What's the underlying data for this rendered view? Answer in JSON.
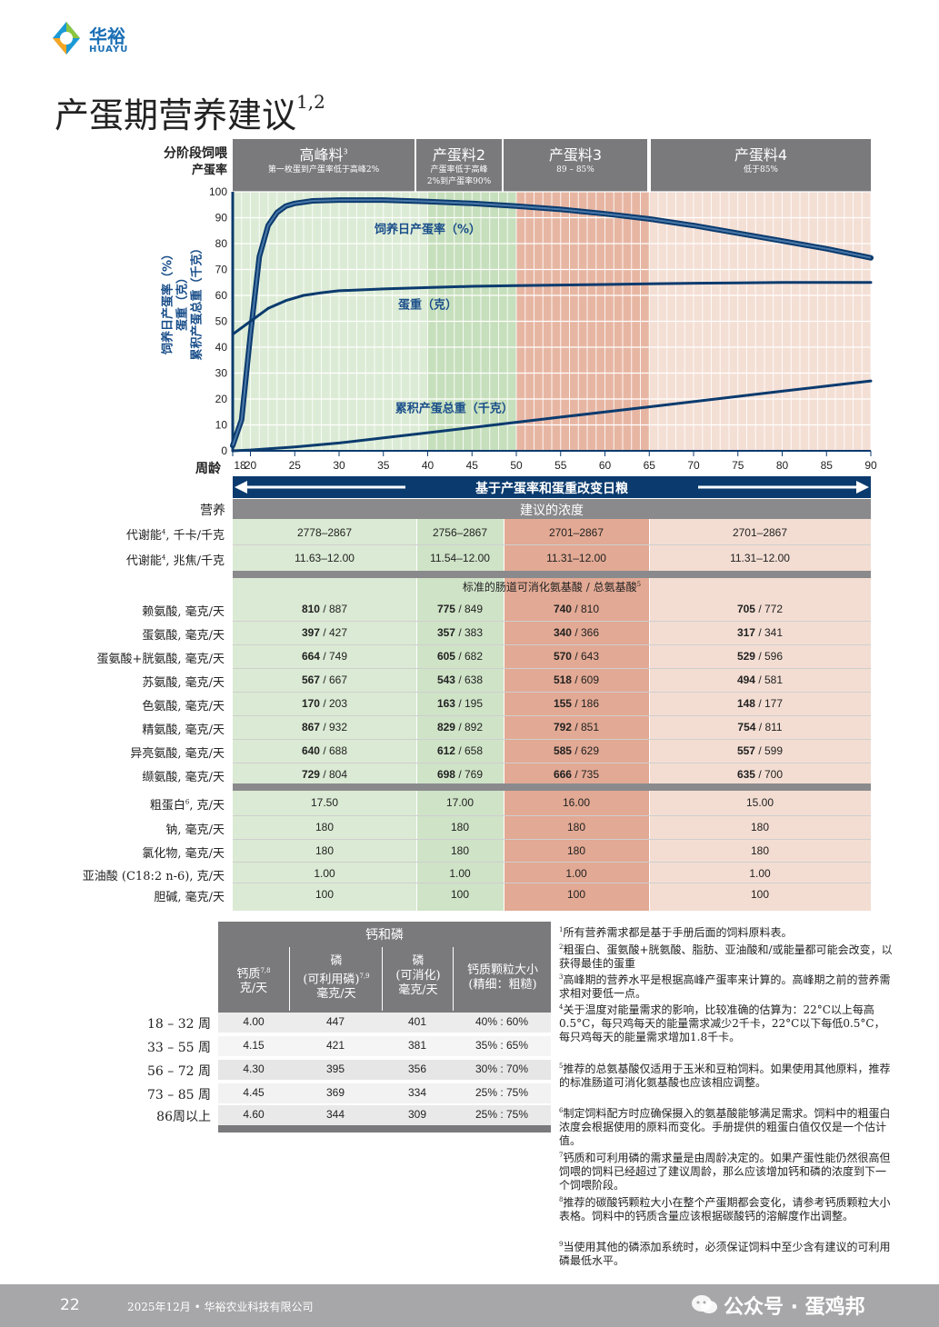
{
  "logo": {
    "name_cn": "华裕",
    "name_en": "HUAYU"
  },
  "title": {
    "text": "产蛋期营养建议",
    "sup": "1,2"
  },
  "chart_header": {
    "left_label_1": "分阶段饲喂",
    "left_label_2": "产蛋率",
    "phases": [
      {
        "name": "高峰料",
        "sup": "3",
        "desc": "第一枚蛋到产蛋率低于高峰2%"
      },
      {
        "name": "产蛋料2",
        "desc_1": "产蛋率低于高峰",
        "desc_2": "2%到产蛋率90%"
      },
      {
        "name": "产蛋料3",
        "desc": "89 – 85%"
      },
      {
        "name": "产蛋料4",
        "desc": "低于85%"
      }
    ]
  },
  "chart_data": {
    "type": "line",
    "x_label": "周龄",
    "y_axis_labels": [
      "饲养日产蛋率（%）",
      "蛋重（克）",
      "累积产蛋总重（千克）"
    ],
    "x_ticks": [
      18,
      20,
      25,
      30,
      35,
      40,
      45,
      50,
      55,
      60,
      65,
      70,
      75,
      80,
      85,
      90
    ],
    "y_ticks": [
      0,
      10,
      20,
      30,
      40,
      50,
      60,
      70,
      80,
      90,
      100
    ],
    "xlim": [
      18,
      90
    ],
    "ylim": [
      0,
      100
    ],
    "series": [
      {
        "name": "饲养日产蛋率（%）",
        "x": [
          18,
          19,
          20,
          21,
          22,
          23,
          24,
          25,
          27,
          30,
          35,
          40,
          45,
          50,
          55,
          60,
          65,
          70,
          75,
          80,
          85,
          90
        ],
        "y": [
          2,
          12,
          45,
          75,
          87,
          92,
          94.5,
          95.5,
          96.5,
          96.8,
          96.8,
          96.2,
          95.5,
          94.5,
          93.2,
          91.5,
          89.5,
          87,
          84,
          81,
          78,
          74.5
        ]
      },
      {
        "name": "蛋重（克）",
        "x": [
          18,
          20,
          22,
          24,
          26,
          28,
          30,
          35,
          40,
          45,
          50,
          55,
          60,
          65,
          70,
          75,
          80,
          85,
          90
        ],
        "y": [
          45,
          50,
          55,
          58,
          60,
          61,
          61.8,
          62.5,
          63,
          63.5,
          63.8,
          64,
          64.2,
          64.5,
          64.7,
          64.8,
          65,
          65,
          65
        ]
      },
      {
        "name": "累积产蛋总重（千克）",
        "x": [
          18,
          20,
          25,
          30,
          35,
          40,
          45,
          50,
          55,
          60,
          65,
          70,
          75,
          80,
          85,
          90
        ],
        "y": [
          0,
          0.3,
          1.5,
          3,
          5,
          7,
          9,
          11,
          13,
          15,
          17,
          19,
          21,
          23,
          25,
          27
        ]
      }
    ],
    "arrow_label": "基于产蛋率和蛋重改变日粮"
  },
  "table": {
    "nutrient_header": "营养",
    "conc_header": "建议的浓度",
    "energy_rows": [
      {
        "label": "代谢能",
        "sup": "4",
        "unit": ", 千卡/千克",
        "values": [
          "2778–2867",
          "2756–2867",
          "2701–2867",
          "2701–2867"
        ]
      },
      {
        "label": "代谢能",
        "sup": "4",
        "unit": ", 兆焦/千克",
        "values": [
          "11.63–12.00",
          "11.54–12.00",
          "11.31–12.00",
          "11.31–12.00"
        ]
      }
    ],
    "aa_header": "标准的肠道可消化氨基酸 / 总氨基酸",
    "aa_header_sup": "5",
    "aa_rows": [
      {
        "label": "赖氨酸, 毫克/天",
        "values": [
          [
            "810",
            "887"
          ],
          [
            "775",
            "849"
          ],
          [
            "740",
            "810"
          ],
          [
            "705",
            "772"
          ]
        ]
      },
      {
        "label": "蛋氨酸, 毫克/天",
        "values": [
          [
            "397",
            "427"
          ],
          [
            "357",
            "383"
          ],
          [
            "340",
            "366"
          ],
          [
            "317",
            "341"
          ]
        ]
      },
      {
        "label": "蛋氨酸+胱氨酸, 毫克/天",
        "values": [
          [
            "664",
            "749"
          ],
          [
            "605",
            "682"
          ],
          [
            "570",
            "643"
          ],
          [
            "529",
            "596"
          ]
        ]
      },
      {
        "label": "苏氨酸, 毫克/天",
        "values": [
          [
            "567",
            "667"
          ],
          [
            "543",
            "638"
          ],
          [
            "518",
            "609"
          ],
          [
            "494",
            "581"
          ]
        ]
      },
      {
        "label": "色氨酸, 毫克/天",
        "values": [
          [
            "170",
            "203"
          ],
          [
            "163",
            "195"
          ],
          [
            "155",
            "186"
          ],
          [
            "148",
            "177"
          ]
        ]
      },
      {
        "label": "精氨酸, 毫克/天",
        "values": [
          [
            "867",
            "932"
          ],
          [
            "829",
            "892"
          ],
          [
            "792",
            "851"
          ],
          [
            "754",
            "811"
          ]
        ]
      },
      {
        "label": "异亮氨酸, 毫克/天",
        "values": [
          [
            "640",
            "688"
          ],
          [
            "612",
            "658"
          ],
          [
            "585",
            "629"
          ],
          [
            "557",
            "599"
          ]
        ]
      },
      {
        "label": "缬氨酸, 毫克/天",
        "values": [
          [
            "729",
            "804"
          ],
          [
            "698",
            "769"
          ],
          [
            "666",
            "735"
          ],
          [
            "635",
            "700"
          ]
        ]
      }
    ],
    "other_rows": [
      {
        "label": "粗蛋白",
        "sup": "6",
        "unit": ", 克/天",
        "values": [
          "17.50",
          "17.00",
          "16.00",
          "15.00"
        ]
      },
      {
        "label": "钠, 毫克/天",
        "values": [
          "180",
          "180",
          "180",
          "180"
        ]
      },
      {
        "label": "氯化物, 毫克/天",
        "values": [
          "180",
          "180",
          "180",
          "180"
        ]
      },
      {
        "label": "亚油酸 (C18:2 n-6), 克/天",
        "values": [
          "1.00",
          "1.00",
          "1.00",
          "1.00"
        ]
      },
      {
        "label": "胆碱, 毫克/天",
        "values": [
          "100",
          "100",
          "100",
          "100"
        ]
      }
    ]
  },
  "ca_table": {
    "title": "钙和磷",
    "headers": [
      {
        "l1": "钙质",
        "sup": "7,8",
        "l2": "克/天"
      },
      {
        "l1": "磷",
        "l2": "(可利用磷)",
        "sup": "7,9",
        "l3": "毫克/天"
      },
      {
        "l1": "磷",
        "l2": "(可消化)",
        "l3": "毫克/天"
      },
      {
        "l1": "钙质颗粒大小",
        "l2": "(精细：粗糙)"
      }
    ],
    "rows": [
      {
        "label": "18 – 32 周",
        "values": [
          "4.00",
          "447",
          "401",
          "40% : 60%"
        ]
      },
      {
        "label": "33 – 55 周",
        "values": [
          "4.15",
          "421",
          "381",
          "35% : 65%"
        ]
      },
      {
        "label": "56 – 72 周",
        "values": [
          "4.30",
          "395",
          "356",
          "30% : 70%"
        ]
      },
      {
        "label": "73 – 85 周",
        "values": [
          "4.45",
          "369",
          "334",
          "25% : 75%"
        ]
      },
      {
        "label": "86周以上",
        "values": [
          "4.60",
          "344",
          "309",
          "25% : 75%"
        ]
      }
    ]
  },
  "footnotes": [
    {
      "n": "1",
      "text": "所有营养需求都是基于手册后面的饲料原料表。"
    },
    {
      "n": "2",
      "text": "粗蛋白、蛋氨酸+胱氨酸、脂肪、亚油酸和/或能量都可能会改变，以获得最佳的蛋重"
    },
    {
      "n": "3",
      "text": "高峰期的营养水平是根据高峰产蛋率来计算的。高峰期之前的营养需求相对要低一点。"
    },
    {
      "n": "4",
      "text": "关于温度对能量需求的影响，比较准确的估算为：22°C以上每高0.5°C，每只鸡每天的能量需求减少2千卡，22°C以下每低0.5°C，每只鸡每天的能量需求增加1.8千卡。"
    },
    {
      "n": "5",
      "text": "推荐的总氨基酸仅适用于玉米和豆粕饲料。如果使用其他原料，推荐的标准肠道可消化氨基酸也应该相应调整。"
    },
    {
      "n": "6",
      "text": "制定饲料配方时应确保摄入的氨基酸能够满足需求。饲料中的粗蛋白浓度会根据使用的原料而变化。手册提供的粗蛋白值仅仅是一个估计值。"
    },
    {
      "n": "7",
      "text": "钙质和可利用磷的需求量是由周龄决定的。如果产蛋性能仍然很高但饲喂的饲料已经超过了建议周龄，那么应该增加钙和磷的浓度到下一个饲喂阶段。"
    },
    {
      "n": "8",
      "text": "推荐的碳酸钙颗粒大小在整个产蛋期都会变化，请参考钙质颗粒大小表格。饲料中的钙质含量应该根据碳酸钙的溶解度作出调整。"
    },
    {
      "n": "9",
      "text": "当使用其他的磷添加系统时，必须保证饲料中至少含有建议的可利用磷最低水平。"
    }
  ],
  "footer": {
    "page": "22",
    "text": "2025年12月 • 华裕农业科技有限公司",
    "watermark": "公众号 · 蛋鸡邦"
  },
  "colors": {
    "green": "#d9ead3",
    "salmon": "#e2a994",
    "light_salmon": "#f3ddd2",
    "navy": "#0b3b6e",
    "gray": "#7a7a7d",
    "blue_text": "#1a4f8a"
  }
}
